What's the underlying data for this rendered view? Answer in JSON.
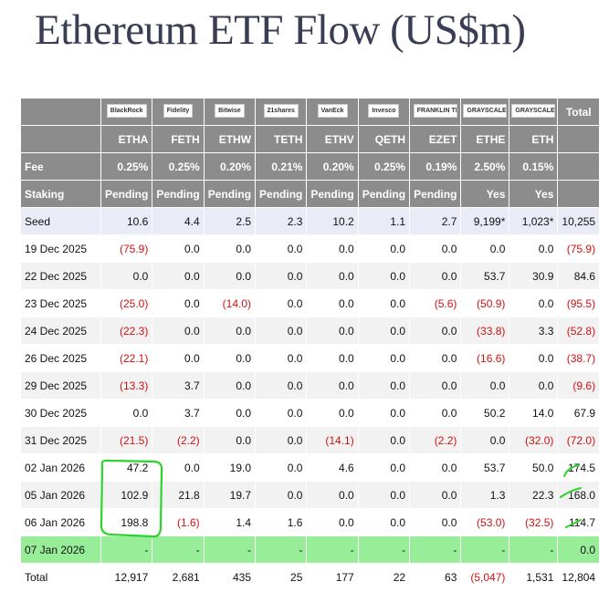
{
  "title": "Ethereum ETF Flow (US$m)",
  "table": {
    "logos": [
      "BlackRock",
      "Fidelity",
      "Bitwise",
      "21shares",
      "VanEck",
      "Invesco",
      "FRANKLIN TEMPLETON",
      "GRAYSCALE",
      "GRAYSCALE"
    ],
    "total_header": "Total",
    "tickers": [
      "ETHA",
      "FETH",
      "ETHW",
      "TETH",
      "ETHV",
      "QETH",
      "EZET",
      "ETHE",
      "ETH"
    ],
    "fee": {
      "label": "Fee",
      "values": [
        "0.25%",
        "0.25%",
        "0.20%",
        "0.21%",
        "0.20%",
        "0.25%",
        "0.19%",
        "2.50%",
        "0.15%"
      ]
    },
    "staking": {
      "label": "Staking",
      "values": [
        "Pending",
        "Pending",
        "Pending",
        "Pending",
        "Pending",
        "Pending",
        "Pending",
        "Yes",
        "Yes"
      ]
    },
    "rows": [
      {
        "label": "Seed",
        "cells": [
          "10.6",
          "4.4",
          "2.5",
          "2.3",
          "10.2",
          "1.1",
          "2.7",
          "9,199*",
          "1,023*",
          "10,255"
        ]
      },
      {
        "label": "19 Dec 2025",
        "cells": [
          "(75.9)",
          "0.0",
          "0.0",
          "0.0",
          "0.0",
          "0.0",
          "0.0",
          "0.0",
          "0.0",
          "(75.9)"
        ]
      },
      {
        "label": "22 Dec 2025",
        "cells": [
          "0.0",
          "0.0",
          "0.0",
          "0.0",
          "0.0",
          "0.0",
          "0.0",
          "53.7",
          "30.9",
          "84.6"
        ]
      },
      {
        "label": "23 Dec 2025",
        "cells": [
          "(25.0)",
          "0.0",
          "(14.0)",
          "0.0",
          "0.0",
          "0.0",
          "(5.6)",
          "(50.9)",
          "0.0",
          "(95.5)"
        ]
      },
      {
        "label": "24 Dec 2025",
        "cells": [
          "(22.3)",
          "0.0",
          "0.0",
          "0.0",
          "0.0",
          "0.0",
          "0.0",
          "(33.8)",
          "3.3",
          "(52.8)"
        ]
      },
      {
        "label": "26 Dec 2025",
        "cells": [
          "(22.1)",
          "0.0",
          "0.0",
          "0.0",
          "0.0",
          "0.0",
          "0.0",
          "(16.6)",
          "0.0",
          "(38.7)"
        ]
      },
      {
        "label": "29 Dec 2025",
        "cells": [
          "(13.3)",
          "3.7",
          "0.0",
          "0.0",
          "0.0",
          "0.0",
          "0.0",
          "0.0",
          "0.0",
          "(9.6)"
        ]
      },
      {
        "label": "30 Dec 2025",
        "cells": [
          "0.0",
          "3.7",
          "0.0",
          "0.0",
          "0.0",
          "0.0",
          "0.0",
          "50.2",
          "14.0",
          "67.9"
        ]
      },
      {
        "label": "31 Dec 2025",
        "cells": [
          "(21.5)",
          "(2.2)",
          "0.0",
          "0.0",
          "(14.1)",
          "0.0",
          "(2.2)",
          "0.0",
          "(32.0)",
          "(72.0)"
        ]
      },
      {
        "label": "02 Jan 2026",
        "cells": [
          "47.2",
          "0.0",
          "19.0",
          "0.0",
          "4.6",
          "0.0",
          "0.0",
          "53.7",
          "50.0",
          "174.5"
        ]
      },
      {
        "label": "05 Jan 2026",
        "cells": [
          "102.9",
          "21.8",
          "19.7",
          "0.0",
          "0.0",
          "0.0",
          "0.0",
          "1.3",
          "22.3",
          "168.0"
        ]
      },
      {
        "label": "06 Jan 2026",
        "cells": [
          "198.8",
          "(1.6)",
          "1.4",
          "1.6",
          "0.0",
          "0.0",
          "0.0",
          "(53.0)",
          "(32.5)",
          "114.7"
        ]
      },
      {
        "label": "07 Jan 2026",
        "cells": [
          "-",
          "-",
          "-",
          "-",
          "-",
          "-",
          "-",
          "-",
          "-",
          "0.0"
        ],
        "highlight": true
      },
      {
        "label": "Total",
        "cells": [
          "12,917",
          "2,681",
          "435",
          "25",
          "177",
          "22",
          "63",
          "(5,047)",
          "1,531",
          "12,804"
        ]
      }
    ]
  }
}
